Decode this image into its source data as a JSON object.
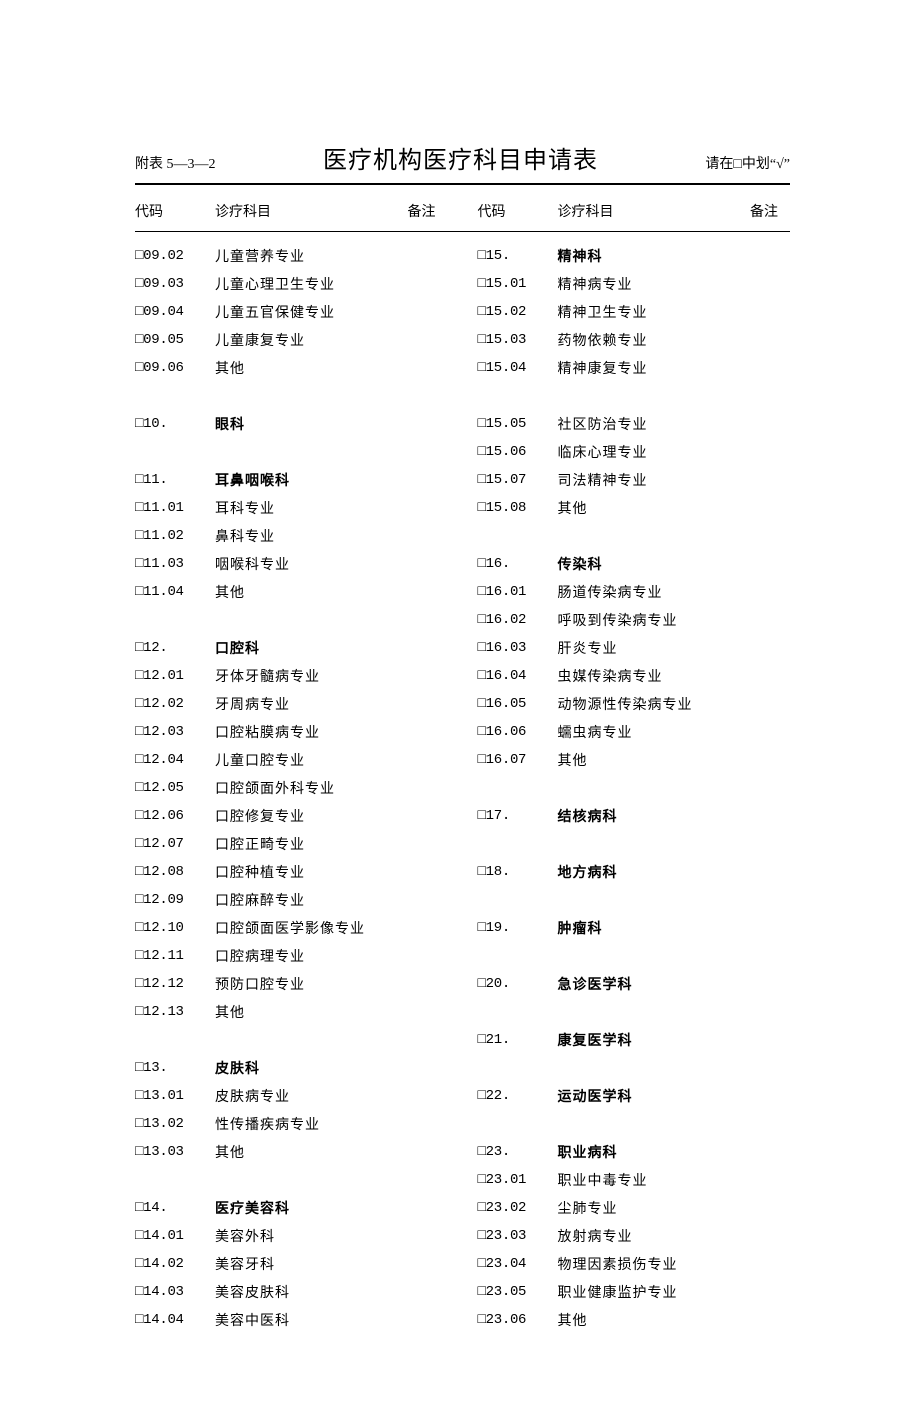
{
  "header": {
    "appendix": "附表 5—3—2",
    "title": "医疗机构医疗科目申请表",
    "instruction": "请在□中划“√”"
  },
  "columns": {
    "code": "代码",
    "subject": "诊疗科目",
    "note": "备注"
  },
  "checkbox_glyph": "□",
  "left": [
    {
      "code": "09.02",
      "subject": "儿童营养专业",
      "bold": false
    },
    {
      "code": "09.03",
      "subject": "儿童心理卫生专业",
      "bold": false
    },
    {
      "code": "09.04",
      "subject": "儿童五官保健专业",
      "bold": false
    },
    {
      "code": "09.05",
      "subject": "儿童康复专业",
      "bold": false
    },
    {
      "code": "09.06",
      "subject": "其他",
      "bold": false
    },
    {
      "blank": true
    },
    {
      "code": "10.",
      "subject": "眼科",
      "bold": true
    },
    {
      "blank": true
    },
    {
      "code": "11.",
      "subject": "耳鼻咽喉科",
      "bold": true
    },
    {
      "code": "11.01",
      "subject": "耳科专业",
      "bold": false
    },
    {
      "code": "11.02",
      "subject": "鼻科专业",
      "bold": false
    },
    {
      "code": "11.03",
      "subject": "咽喉科专业",
      "bold": false
    },
    {
      "code": "11.04",
      "subject": "其他",
      "bold": false
    },
    {
      "blank": true
    },
    {
      "code": "12.",
      "subject": "口腔科",
      "bold": true
    },
    {
      "code": "12.01",
      "subject": "牙体牙髓病专业",
      "bold": false
    },
    {
      "code": "12.02",
      "subject": "牙周病专业",
      "bold": false
    },
    {
      "code": "12.03",
      "subject": "口腔粘膜病专业",
      "bold": false
    },
    {
      "code": "12.04",
      "subject": "儿童口腔专业",
      "bold": false
    },
    {
      "code": "12.05",
      "subject": "口腔颌面外科专业",
      "bold": false
    },
    {
      "code": "12.06",
      "subject": "口腔修复专业",
      "bold": false
    },
    {
      "code": "12.07",
      "subject": "口腔正畸专业",
      "bold": false
    },
    {
      "code": "12.08",
      "subject": "口腔种植专业",
      "bold": false
    },
    {
      "code": "12.09",
      "subject": "口腔麻醉专业",
      "bold": false
    },
    {
      "code": "12.10",
      "subject": "口腔颌面医学影像专业",
      "bold": false
    },
    {
      "code": "12.11",
      "subject": "口腔病理专业",
      "bold": false
    },
    {
      "code": "12.12",
      "subject": "预防口腔专业",
      "bold": false
    },
    {
      "code": "12.13",
      "subject": "其他",
      "bold": false
    },
    {
      "blank": true
    },
    {
      "code": "13.",
      "subject": "皮肤科",
      "bold": true
    },
    {
      "code": "13.01",
      "subject": "皮肤病专业",
      "bold": false
    },
    {
      "code": "13.02",
      "subject": "性传播疾病专业",
      "bold": false
    },
    {
      "code": "13.03",
      "subject": "其他",
      "bold": false
    },
    {
      "blank": true
    },
    {
      "code": "14.",
      "subject": "医疗美容科",
      "bold": true
    },
    {
      "code": "14.01",
      "subject": "美容外科",
      "bold": false
    },
    {
      "code": "14.02",
      "subject": "美容牙科",
      "bold": false
    },
    {
      "code": "14.03",
      "subject": "美容皮肤科",
      "bold": false
    },
    {
      "code": "14.04",
      "subject": "美容中医科",
      "bold": false
    }
  ],
  "right": [
    {
      "code": "15.",
      "subject": "精神科",
      "bold": true
    },
    {
      "code": "15.01",
      "subject": "精神病专业",
      "bold": false
    },
    {
      "code": "15.02",
      "subject": "精神卫生专业",
      "bold": false
    },
    {
      "code": "15.03",
      "subject": "药物依赖专业",
      "bold": false
    },
    {
      "code": "15.04",
      "subject": "精神康复专业",
      "bold": false
    },
    {
      "blank": true
    },
    {
      "code": "15.05",
      "subject": "社区防治专业",
      "bold": false
    },
    {
      "code": "15.06",
      "subject": "临床心理专业",
      "bold": false
    },
    {
      "code": "15.07",
      "subject": "司法精神专业",
      "bold": false
    },
    {
      "code": "15.08",
      "subject": "其他",
      "bold": false
    },
    {
      "blank": true
    },
    {
      "code": "16.",
      "subject": "传染科",
      "bold": true
    },
    {
      "code": "16.01",
      "subject": "肠道传染病专业",
      "bold": false
    },
    {
      "code": "16.02",
      "subject": "呼吸到传染病专业",
      "bold": false
    },
    {
      "code": "16.03",
      "subject": "肝炎专业",
      "bold": false
    },
    {
      "code": "16.04",
      "subject": "虫媒传染病专业",
      "bold": false
    },
    {
      "code": "16.05",
      "subject": "动物源性传染病专业",
      "bold": false
    },
    {
      "code": "16.06",
      "subject": "蠕虫病专业",
      "bold": false
    },
    {
      "code": "16.07",
      "subject": "其他",
      "bold": false
    },
    {
      "blank": true
    },
    {
      "code": "17.",
      "subject": "结核病科",
      "bold": true
    },
    {
      "blank": true
    },
    {
      "code": "18.",
      "subject": "地方病科",
      "bold": true
    },
    {
      "blank": true
    },
    {
      "code": "19.",
      "subject": "肿瘤科",
      "bold": true
    },
    {
      "blank": true
    },
    {
      "code": "20.",
      "subject": "急诊医学科",
      "bold": true
    },
    {
      "blank": true
    },
    {
      "code": "21.",
      "subject": "康复医学科",
      "bold": true
    },
    {
      "blank": true
    },
    {
      "code": "22.",
      "subject": "运动医学科",
      "bold": true
    },
    {
      "blank": true
    },
    {
      "code": "23.",
      "subject": "职业病科",
      "bold": true
    },
    {
      "code": "23.01",
      "subject": "职业中毒专业",
      "bold": false
    },
    {
      "code": "23.02",
      "subject": "尘肺专业",
      "bold": false
    },
    {
      "code": "23.03",
      "subject": "放射病专业",
      "bold": false
    },
    {
      "code": "23.04",
      "subject": "物理因素损伤专业",
      "bold": false
    },
    {
      "code": "23.05",
      "subject": "职业健康监护专业",
      "bold": false
    },
    {
      "code": "23.06",
      "subject": "其他",
      "bold": false
    }
  ]
}
